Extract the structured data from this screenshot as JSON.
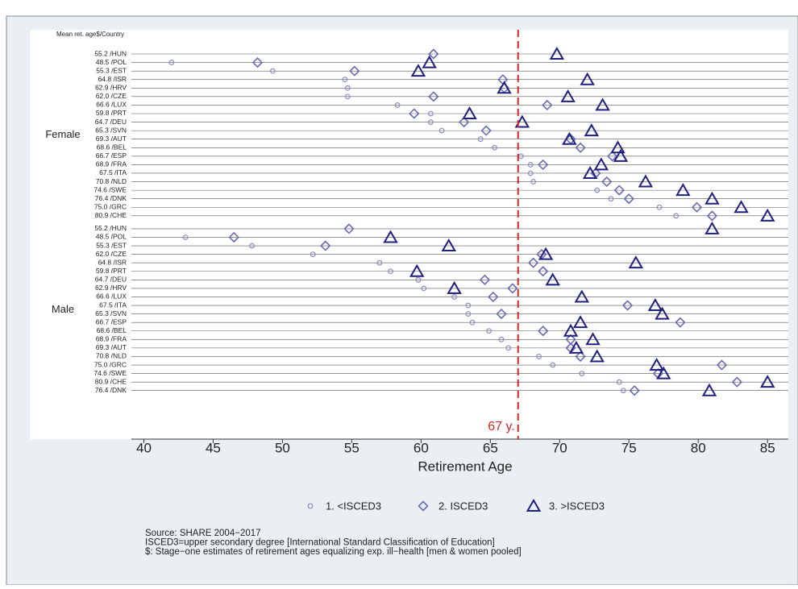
{
  "chart_data": {
    "type": "dot",
    "header_label": "Mean ret. age$/Country",
    "xlabel": "Retirement Age",
    "xlim": [
      39.1,
      86.5
    ],
    "xticks": [
      40,
      45,
      50,
      55,
      60,
      65,
      70,
      75,
      80,
      85
    ],
    "reference_line": {
      "value": 67,
      "label": "67 y.",
      "color": "#d62728"
    },
    "groups": [
      {
        "label": "Female",
        "categories": [
          "55.2 /HUN",
          "48.5 /POL",
          "55.3 /EST",
          "64.8 /ISR",
          "62.9 /HRV",
          "62.0 /CZE",
          "66.6 /LUX",
          "59.8 /PRT",
          "64.7 /DEU",
          "65.3 /SVN",
          "69.3 /AUT",
          "68.6 /BEL",
          "66.7 /ESP",
          "68.9 /FRA",
          "67.5 /ITA",
          "70.8 /NLD",
          "74.6 /SWE",
          "76.4 /DNK",
          "75.0 /GRC",
          "80.9 /CHE"
        ]
      },
      {
        "label": "Male",
        "categories": [
          "55.2 /HUN",
          "48.5 /POL",
          "55.3 /EST",
          "62.0 /CZE",
          "64.8 /ISR",
          "59.8 /PRT",
          "64.7 /DEU",
          "62.9 /HRV",
          "66.6 /LUX",
          "67.5 /ITA",
          "65.3 /SVN",
          "66.7 /ESP",
          "68.6 /BEL",
          "68.9 /FRA",
          "69.3 /AUT",
          "70.8 /NLD",
          "75.0 /GRC",
          "74.6 /SWE",
          "80.9 /CHE",
          "76.4 /DNK"
        ]
      }
    ],
    "series": [
      {
        "name": "1. <ISCED3",
        "color": "#8a8ac6",
        "marker": "circle",
        "values": [
          [
            null,
            42.0,
            49.3,
            54.5,
            54.7,
            54.7,
            58.3,
            60.7,
            60.7,
            61.5,
            64.3,
            65.3,
            67.2,
            67.9,
            67.9,
            68.1,
            72.7,
            73.7,
            77.2,
            78.4
          ],
          [
            null,
            43.0,
            47.8,
            52.2,
            57.0,
            57.8,
            59.8,
            60.2,
            62.4,
            63.4,
            63.4,
            63.7,
            64.9,
            65.8,
            66.3,
            68.5,
            69.5,
            71.6,
            74.3,
            74.6
          ]
        ]
      },
      {
        "name": "2. ISCED3",
        "color": "#6a6ab4",
        "marker": "diamond",
        "values": [
          [
            60.9,
            48.2,
            55.2,
            65.9,
            66.0,
            60.9,
            69.1,
            59.5,
            63.1,
            64.7,
            70.8,
            71.5,
            73.8,
            68.8,
            72.6,
            73.4,
            74.3,
            75.0,
            79.9,
            81.0
          ],
          [
            54.8,
            46.5,
            53.1,
            68.7,
            68.1,
            68.8,
            64.6,
            66.6,
            65.2,
            74.9,
            65.8,
            78.7,
            68.8,
            70.8,
            70.8,
            71.5,
            81.7,
            77.1,
            82.8,
            75.4
          ]
        ]
      },
      {
        "name": "3. >ISCED3",
        "color": "#1f1f80",
        "marker": "triangle",
        "values": [
          [
            69.8,
            60.6,
            59.8,
            72.0,
            66.0,
            70.6,
            73.1,
            63.5,
            67.3,
            72.3,
            70.7,
            74.2,
            74.4,
            73.0,
            72.2,
            76.2,
            78.9,
            81.0,
            83.1,
            85.0
          ],
          [
            81.0,
            57.8,
            62.0,
            69.0,
            75.5,
            59.7,
            69.5,
            62.4,
            71.6,
            76.9,
            77.4,
            71.5,
            70.8,
            72.4,
            71.2,
            72.7,
            77.0,
            77.5,
            85.0,
            80.8
          ]
        ]
      }
    ],
    "notes": [
      "Source: SHARE 2004−2017",
      "ISCED3=upper secondary degree [International Standard Classification of Education]",
      "$: Stage−one estimates of retirement ages  equalizing exp. ill−health [men & women pooled]"
    ]
  }
}
